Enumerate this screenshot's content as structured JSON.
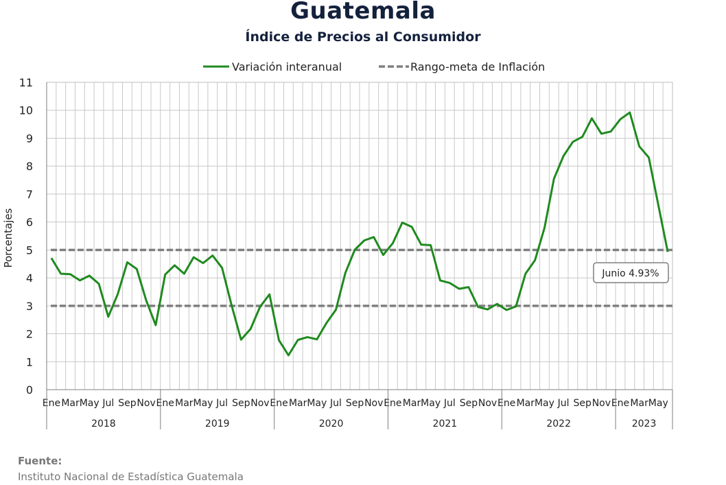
{
  "header": {
    "title": "Guatemala",
    "subtitle": "Índice de Precios al Consumidor"
  },
  "source": {
    "label": "Fuente:",
    "text": "Instituto Nacional de Estadística Guatemala"
  },
  "chart_data": {
    "type": "line",
    "ylabel": "Porcentajes",
    "ylim": [
      0,
      11
    ],
    "yticks": [
      0,
      1,
      2,
      3,
      4,
      5,
      6,
      7,
      8,
      9,
      10,
      11
    ],
    "grid": true,
    "legend_position": "top-center",
    "month_tick_labels": [
      "Ene",
      "",
      "Mar",
      "",
      "May",
      "",
      "Jul",
      "",
      "Sep",
      "",
      "Nov",
      ""
    ],
    "years": [
      "2018",
      "2019",
      "2020",
      "2021",
      "2022",
      "2023"
    ],
    "series": [
      {
        "name": "Variación interanual",
        "color": "#1f8a1f",
        "values": [
          4.71,
          4.15,
          4.13,
          3.91,
          4.08,
          3.79,
          2.61,
          3.42,
          4.56,
          4.32,
          3.19,
          2.31,
          4.12,
          4.45,
          4.15,
          4.74,
          4.53,
          4.8,
          4.36,
          3.02,
          1.79,
          2.17,
          2.96,
          3.41,
          1.77,
          1.23,
          1.78,
          1.88,
          1.8,
          2.38,
          2.86,
          4.18,
          5.01,
          5.34,
          5.46,
          4.82,
          5.24,
          5.98,
          5.83,
          5.19,
          5.17,
          3.91,
          3.82,
          3.61,
          3.67,
          2.96,
          2.87,
          3.07,
          2.85,
          2.98,
          4.15,
          4.63,
          5.79,
          7.55,
          8.36,
          8.87,
          9.05,
          9.71,
          9.16,
          9.24,
          9.68,
          9.92,
          8.71,
          8.31,
          6.62,
          4.93
        ]
      },
      {
        "name": "Rango-meta de Inflación",
        "color": "#7f7f7f",
        "style": "dashed",
        "values": [
          3,
          5
        ]
      }
    ],
    "annotation": {
      "text": "Junio 4.93%"
    }
  }
}
